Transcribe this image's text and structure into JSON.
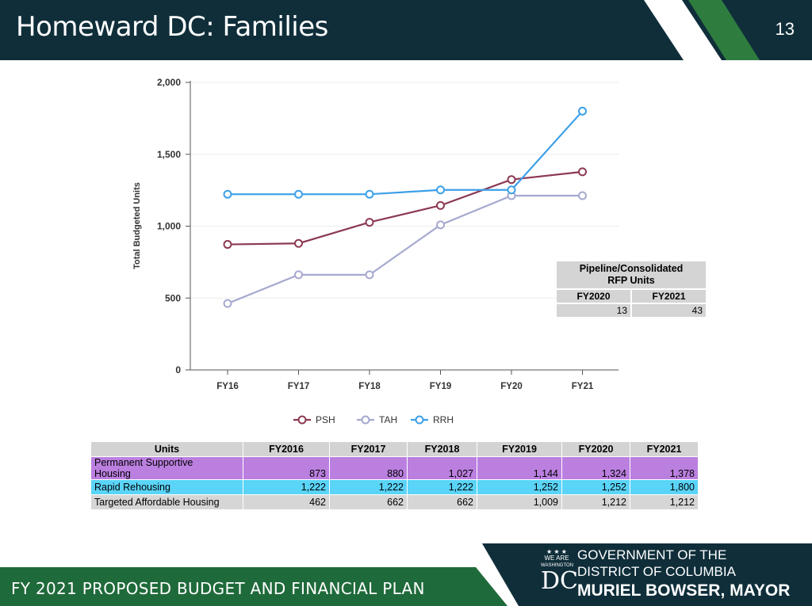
{
  "header": {
    "title": "Homeward DC: Families",
    "page_number": "13"
  },
  "chart_data": {
    "type": "line",
    "categories": [
      "FY16",
      "FY17",
      "FY18",
      "FY19",
      "FY20",
      "FY21"
    ],
    "series": [
      {
        "name": "PSH",
        "values": [
          873,
          880,
          1027,
          1144,
          1324,
          1378
        ],
        "color": "#8c3a52"
      },
      {
        "name": "TAH",
        "values": [
          462,
          662,
          662,
          1009,
          1212,
          1212
        ],
        "color": "#a6a9cf"
      },
      {
        "name": "RRH",
        "values": [
          1222,
          1222,
          1222,
          1252,
          1252,
          1800
        ],
        "color": "#3ca0e8"
      }
    ],
    "ylabel": "Total Budgeted Units",
    "ylim": [
      0,
      2000
    ],
    "yticks": [
      "0",
      "500",
      "1,000",
      "1,500",
      "2,000"
    ],
    "ytick_values": [
      0,
      500,
      1000,
      1500,
      2000
    ],
    "grid": true,
    "legend": "bottom"
  },
  "pipeline": {
    "title_line1": "Pipeline/Consolidated",
    "title_line2": "RFP Units",
    "headers": [
      "FY2020",
      "FY2021"
    ],
    "values": [
      "13",
      "43"
    ]
  },
  "units_table": {
    "headers": [
      "Units",
      "FY2016",
      "FY2017",
      "FY2018",
      "FY2019",
      "FY2020",
      "FY2021"
    ],
    "rows": [
      {
        "label_line1": "Permanent Supportive",
        "label_line2": "Housing",
        "values": [
          "873",
          "880",
          "1,027",
          "1,144",
          "1,324",
          "1,378"
        ],
        "color": "#bb7fe0"
      },
      {
        "label": "Rapid Rehousing",
        "values": [
          "1,222",
          "1,222",
          "1,222",
          "1,252",
          "1,252",
          "1,800"
        ],
        "color": "#5ad4f7"
      },
      {
        "label": "Targeted Affordable Housing",
        "values": [
          "462",
          "662",
          "662",
          "1,009",
          "1,212",
          "1,212"
        ],
        "color": "#d6d6d6"
      }
    ]
  },
  "footer": {
    "plan_title": "FY 2021 PROPOSED BUDGET AND FINANCIAL PLAN",
    "we_are": "WE ARE",
    "washington": "WASHINGTON",
    "dc": "DC",
    "gov_line1": "GOVERNMENT OF THE",
    "gov_line2": "DISTRICT OF COLUMBIA",
    "gov_line3": "MURIEL BOWSER, MAYOR"
  },
  "colors": {
    "header_bg": "#0f2e3a",
    "accent_green": "#1f6a3a",
    "stripe_white": "#ffffff",
    "stripe_green": "#2e7d3f"
  }
}
